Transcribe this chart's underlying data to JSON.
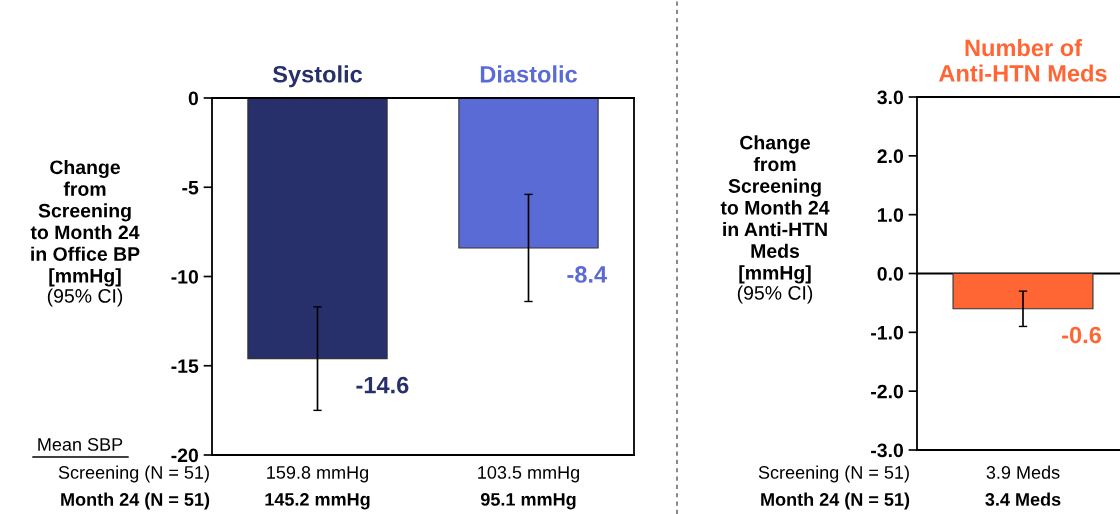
{
  "chart_data": [
    {
      "type": "bar",
      "ylabel": "Change\nfrom\nScreening\nto Month 24\nin Office BP\n[mmHg]\n(95% CI)",
      "categories": [
        "Systolic",
        "Diastolic"
      ],
      "values": [
        -14.6,
        -8.4
      ],
      "colors": [
        "#27306b",
        "#5b6bd6"
      ],
      "errors": [
        2.9,
        3.0
      ],
      "data_labels": true,
      "ylim": [
        -20,
        0
      ],
      "yticks": [
        -20,
        -15,
        -10,
        -5,
        0
      ],
      "grid": false,
      "legend": false,
      "annotations": [
        "Mean SBP",
        "Screening (N = 51)",
        "159.8 mmHg",
        "103.5 mmHg",
        "Month 24 (N = 51)",
        "145.2 mmHg",
        "95.1 mmHg"
      ]
    },
    {
      "type": "bar",
      "ylabel": "Change\nfrom\nScreening\nto Month 24\nin Anti-HTN\nMeds\n[mmHg]\n(95% CI)",
      "categories": [
        "Number of\nAnti-HTN Meds"
      ],
      "values": [
        -0.6
      ],
      "colors": [
        "#ff6633"
      ],
      "errors": [
        0.3
      ],
      "data_labels": true,
      "ylim": [
        -3,
        3
      ],
      "yticks": [
        {
          "value": -3,
          "label": "-3.0"
        },
        {
          "value": -2,
          "label": "-2.0"
        },
        {
          "value": -1,
          "label": "-1.0"
        },
        {
          "value": 0,
          "label": "0.0"
        },
        {
          "value": 1,
          "label": "1.0"
        },
        {
          "value": 2,
          "label": "2.0"
        },
        {
          "value": 3,
          "label": "3.0"
        }
      ],
      "grid": false,
      "legend": false,
      "ref_lines": [
        {
          "axis": "y",
          "value": 0,
          "color": "#000000"
        }
      ],
      "annotations": [
        "Screening (N = 51)",
        "3.9 Meds",
        "Month 24 (N = 51)",
        "3.4 Meds"
      ]
    }
  ]
}
